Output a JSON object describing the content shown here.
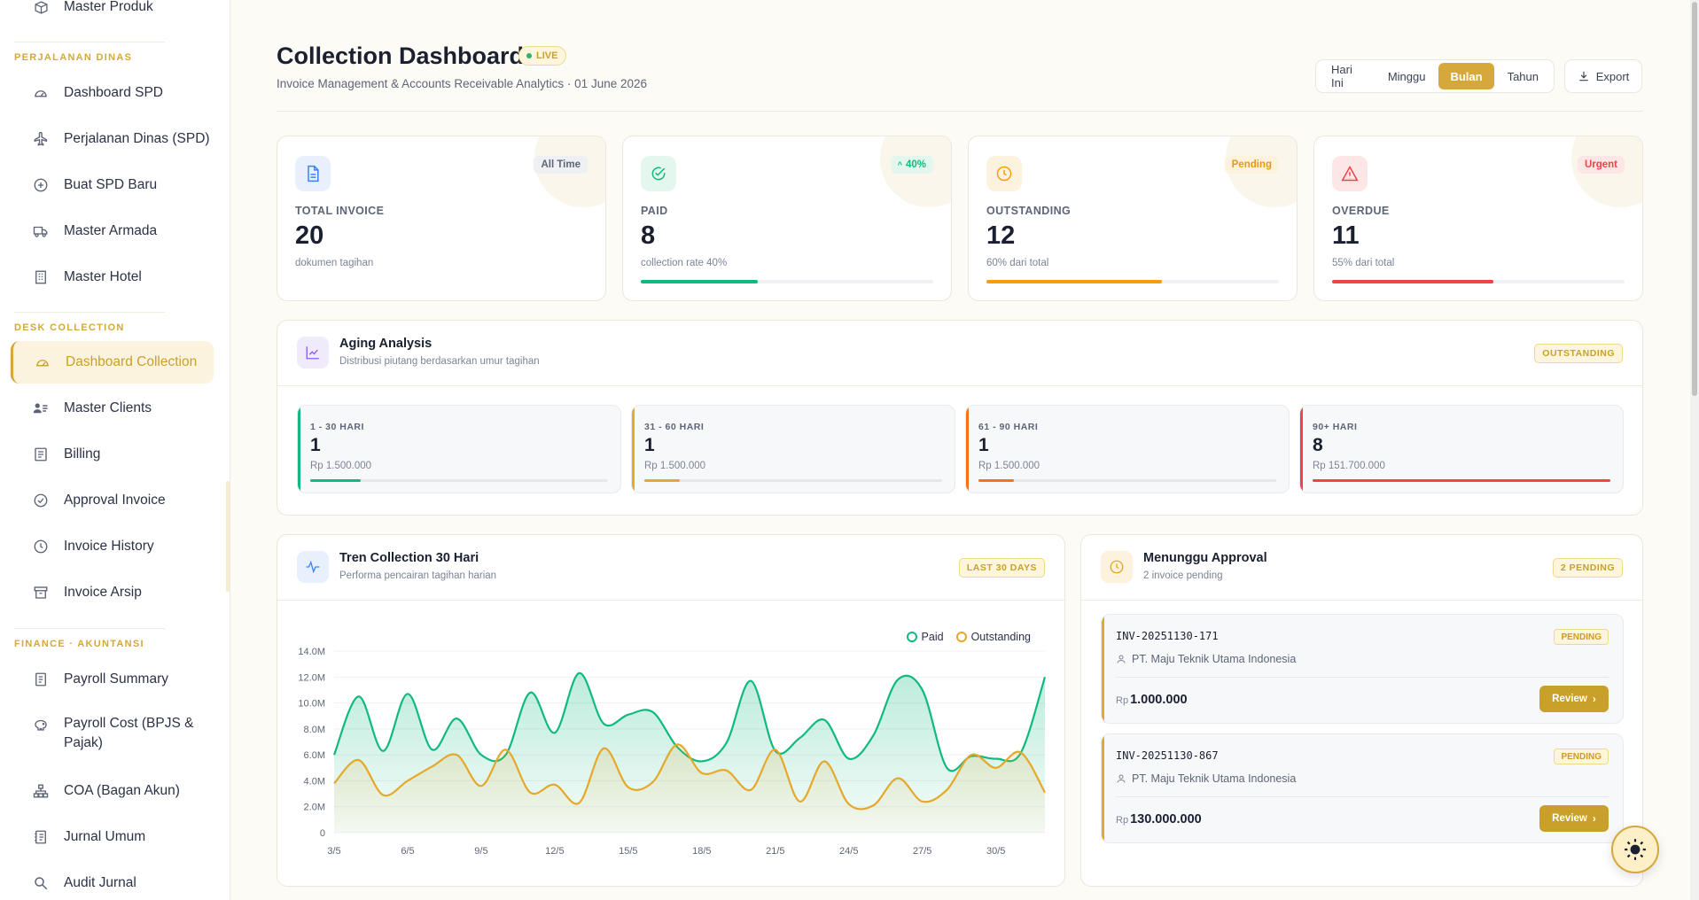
{
  "sidebar": {
    "top_item": "Master Produk",
    "sections": [
      {
        "title": "PERJALANAN DINAS",
        "items": [
          "Dashboard SPD",
          "Perjalanan Dinas (SPD)",
          "Buat SPD Baru",
          "Master Armada",
          "Master Hotel"
        ]
      },
      {
        "title": "DESK COLLECTION",
        "items": [
          "Dashboard Collection",
          "Master Clients",
          "Billing",
          "Approval Invoice",
          "Invoice History",
          "Invoice Arsip"
        ]
      },
      {
        "title": "FINANCE · AKUNTANSI",
        "items": [
          "Payroll Summary",
          "Payroll Cost (BPJS & Pajak)",
          "COA (Bagan Akun)",
          "Jurnal Umum",
          "Audit Jurnal"
        ]
      }
    ],
    "active_item": "Dashboard Collection"
  },
  "header": {
    "title": "Collection Dashboard",
    "live_badge": "LIVE",
    "subtitle": "Invoice Management & Accounts Receivable Analytics · 01 June 2026",
    "periods": [
      "Hari Ini",
      "Minggu",
      "Bulan",
      "Tahun"
    ],
    "active_period": "Bulan",
    "export_label": "Export"
  },
  "stats": [
    {
      "label": "TOTAL INVOICE",
      "value": "20",
      "note": "dokumen tagihan",
      "badge": "All Time",
      "icon": "document-icon",
      "color": "#3b82f6",
      "progress": null
    },
    {
      "label": "PAID",
      "value": "8",
      "note": "collection rate 40%",
      "badge": "40%",
      "icon": "check-circle-icon",
      "color": "#10b981",
      "progress": 0.4
    },
    {
      "label": "OUTSTANDING",
      "value": "12",
      "note": "60% dari total",
      "badge": "Pending",
      "icon": "clock-icon",
      "color": "#f59e0b",
      "progress": 0.6
    },
    {
      "label": "OVERDUE",
      "value": "11",
      "note": "55% dari total",
      "badge": "Urgent",
      "icon": "alert-triangle-icon",
      "color": "#ef4444",
      "progress": 0.55
    }
  ],
  "aging": {
    "title": "Aging Analysis",
    "subtitle": "Distribusi piutang berdasarkan umur tagihan",
    "tag": "OUTSTANDING",
    "buckets": [
      {
        "label": "1 - 30 HARI",
        "count": "1",
        "amount": "Rp 1.500.000",
        "color": "#10b981",
        "progress": 0.17
      },
      {
        "label": "31 - 60 HARI",
        "count": "1",
        "amount": "Rp 1.500.000",
        "color": "#e5a82a",
        "progress": 0.12
      },
      {
        "label": "61 - 90 HARI",
        "count": "1",
        "amount": "Rp 1.500.000",
        "color": "#f97316",
        "progress": 0.12
      },
      {
        "label": "90+ HARI",
        "count": "8",
        "amount": "Rp 151.700.000",
        "color": "#ef4444",
        "progress": 1.0
      }
    ]
  },
  "trend": {
    "title": "Tren Collection 30 Hari",
    "subtitle": "Performa pencairan tagihan harian",
    "tag": "LAST 30 DAYS"
  },
  "chart_data": {
    "type": "area",
    "x": [
      "3/5",
      "4/5",
      "5/5",
      "6/5",
      "7/5",
      "8/5",
      "9/5",
      "10/5",
      "11/5",
      "12/5",
      "13/5",
      "14/5",
      "15/5",
      "16/5",
      "17/5",
      "18/5",
      "19/5",
      "20/5",
      "21/5",
      "22/5",
      "23/5",
      "24/5",
      "25/5",
      "26/5",
      "27/5",
      "28/5",
      "29/5",
      "30/5",
      "31/5",
      "1/6"
    ],
    "x_tick_labels": [
      "3/5",
      "6/5",
      "9/5",
      "12/5",
      "15/5",
      "18/5",
      "21/5",
      "24/5",
      "27/5",
      "30/5"
    ],
    "y_tick_labels": [
      "0",
      "2.0M",
      "4.0M",
      "6.0M",
      "8.0M",
      "10.0M",
      "12.0M",
      "14.0M"
    ],
    "ylim": [
      0,
      14000000
    ],
    "series": [
      {
        "name": "Paid",
        "color": "#10b981",
        "values": [
          6000000,
          10500000,
          6300000,
          10700000,
          6400000,
          8800000,
          6000000,
          6000000,
          10800000,
          7700000,
          12300000,
          8400000,
          9100000,
          9300000,
          6600000,
          5500000,
          6900000,
          11700000,
          6300000,
          7300000,
          8700000,
          5700000,
          7500000,
          11800000,
          11000000,
          5000000,
          5900000,
          5700000,
          6100000,
          12000000
        ]
      },
      {
        "name": "Outstanding",
        "color": "#e5a82a",
        "values": [
          3800000,
          5600000,
          2900000,
          4000000,
          5100000,
          6000000,
          3600000,
          6400000,
          3100000,
          3700000,
          2300000,
          6500000,
          3500000,
          3900000,
          6800000,
          4600000,
          4800000,
          3300000,
          6400000,
          2400000,
          5500000,
          2200000,
          2100000,
          4200000,
          2400000,
          3300000,
          6000000,
          5000000,
          6200000,
          3100000
        ]
      }
    ],
    "legend": "top-right",
    "grid": true
  },
  "approval": {
    "title": "Menunggu Approval",
    "subtitle": "2 invoice pending",
    "tag": "2 PENDING",
    "items": [
      {
        "invoice": "INV-20251130-171",
        "status": "PENDING",
        "client": "PT. Maju Teknik Utama Indonesia",
        "currency": "Rp",
        "amount": "1.000.000",
        "action": "Review"
      },
      {
        "invoice": "INV-20251130-867",
        "status": "PENDING",
        "client": "PT. Maju Teknik Utama Indonesia",
        "currency": "Rp",
        "amount": "130.000.000",
        "action": "Review"
      }
    ]
  }
}
